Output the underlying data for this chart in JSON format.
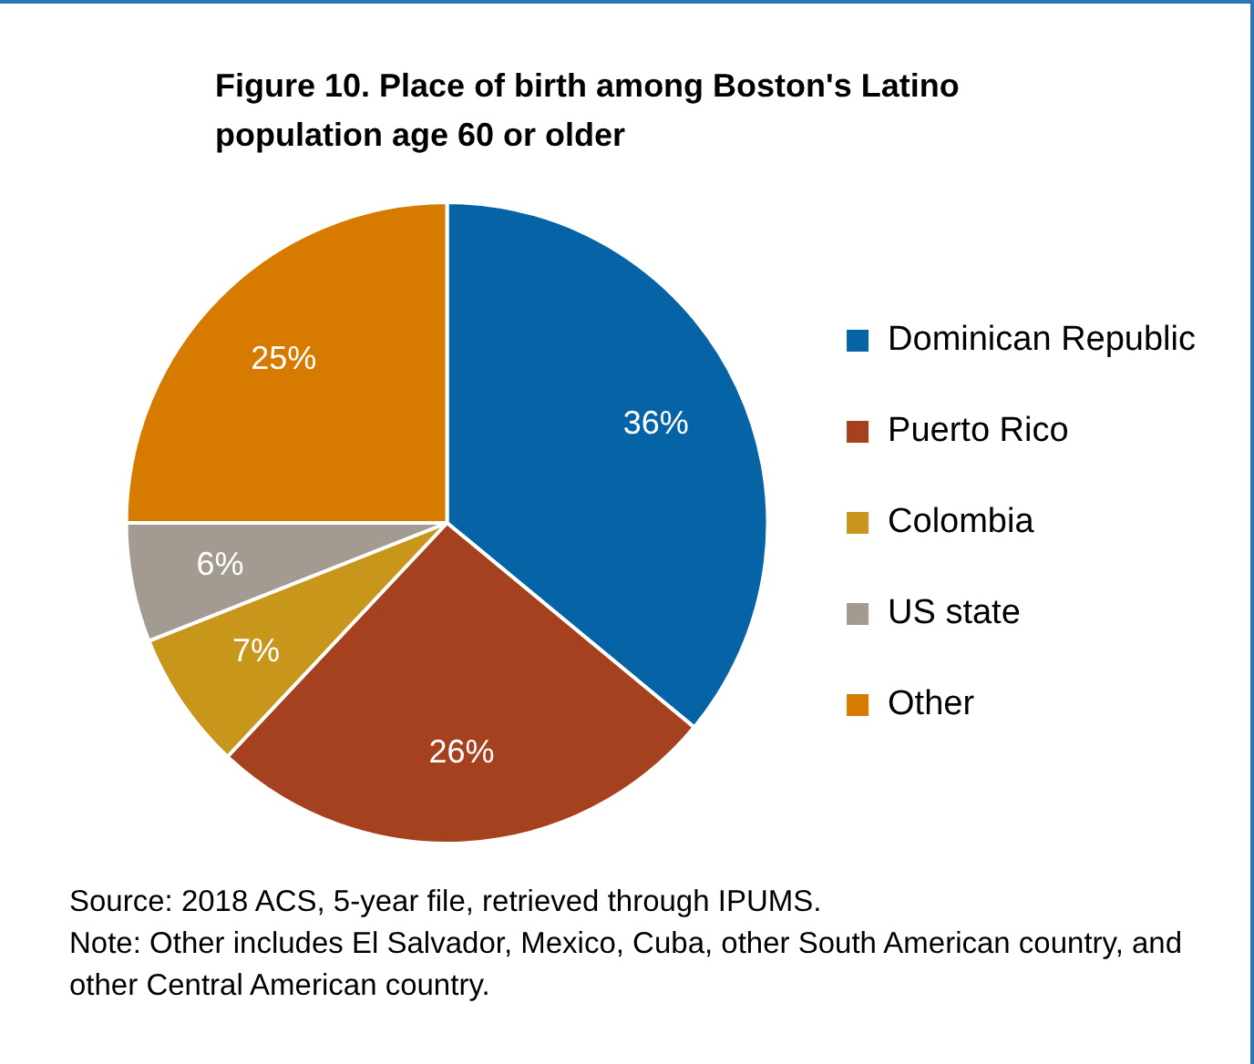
{
  "chart_data": {
    "type": "pie",
    "title": "Figure 10. Place of birth among Boston's Latino population age 60 or older",
    "categories": [
      "Dominican Republic",
      "Puerto Rico",
      "Colombia",
      "US state",
      "Other"
    ],
    "values": [
      36,
      26,
      7,
      6,
      25
    ],
    "colors": [
      "#0563a6",
      "#a6411f",
      "#c9961c",
      "#a39b91",
      "#d77b00"
    ],
    "value_labels": [
      "36%",
      "26%",
      "7%",
      "6%",
      "25%"
    ],
    "legend": "right",
    "annotations": [
      "Source: 2018 ACS, 5-year file, retrieved through IPUMS.",
      "Note: Other includes El Salvador, Mexico, Cuba, other South American country, and other Central American country."
    ]
  }
}
